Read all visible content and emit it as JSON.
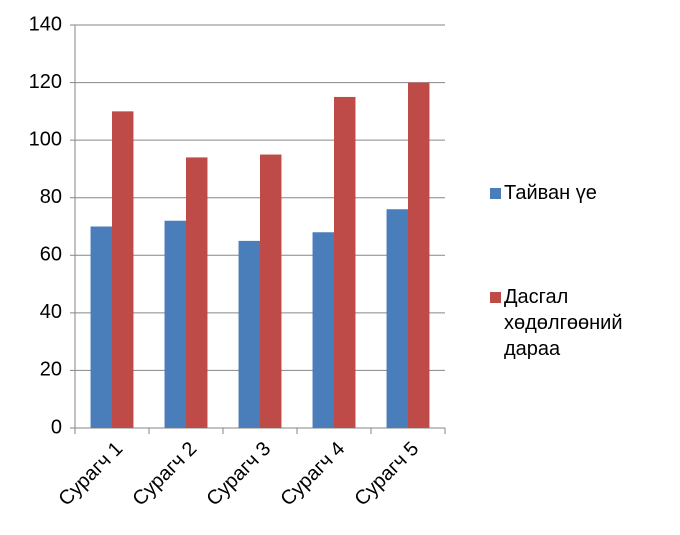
{
  "chart_data": {
    "type": "bar",
    "categories": [
      "Сурагч 1",
      "Сурагч 2",
      "Сурагч 3",
      "Сурагч 4",
      "Сурагч 5"
    ],
    "series": [
      {
        "name": "Тайван үе",
        "color": "#4a7ebb",
        "values": [
          70,
          72,
          65,
          68,
          76
        ]
      },
      {
        "name": "Дасгал хөдөлгөөний дараа",
        "color": "#be4b48",
        "values": [
          110,
          94,
          95,
          115,
          120
        ]
      }
    ],
    "ylim": [
      0,
      140
    ],
    "yticks": [
      0,
      20,
      40,
      60,
      80,
      100,
      120,
      140
    ],
    "grid": true,
    "legend": "right"
  }
}
